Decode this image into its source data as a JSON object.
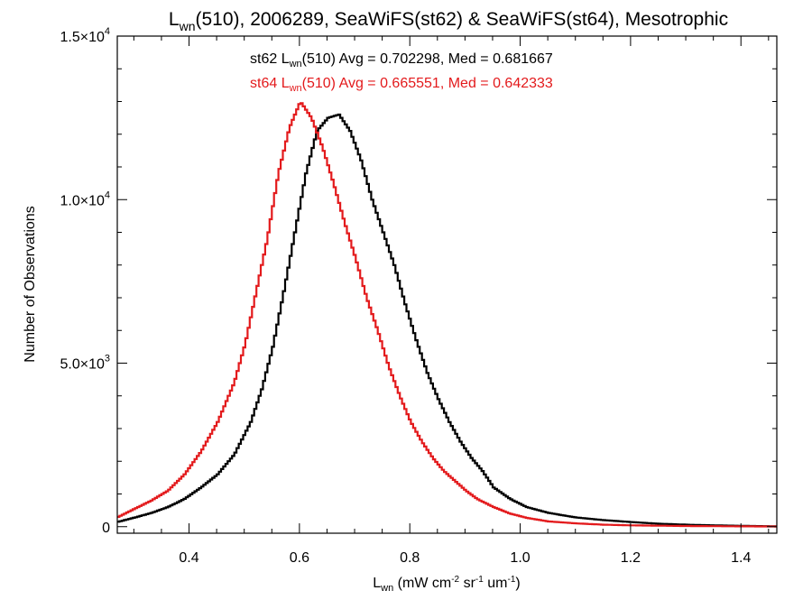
{
  "chart_data": {
    "type": "line",
    "title": {
      "main": "L",
      "sub": "wn",
      "rest": "(510), 2006289, SeaWiFS(st62) & SeaWiFS(st64), Mesotrophic"
    },
    "xlabel": {
      "main": "L",
      "sub": "wn",
      "rest": " (mW cm",
      "sup1": "-2",
      "mid1": " sr",
      "sup2": "-1",
      "mid2": " um",
      "sup3": "-1",
      "end": ")"
    },
    "ylabel": "Number of Observations",
    "xlim": [
      0.27,
      1.465
    ],
    "ylim": [
      -200,
      15000
    ],
    "x_ticks": [
      0.4,
      0.6,
      0.8,
      1.0,
      1.2,
      1.4
    ],
    "x_tick_labels": [
      "0.4",
      "0.6",
      "0.8",
      "1.0",
      "1.2",
      "1.4"
    ],
    "y_ticks": [
      {
        "value": 0,
        "base": "0",
        "exp": ""
      },
      {
        "value": 5000,
        "base": "5.0×10",
        "exp": "3"
      },
      {
        "value": 10000,
        "base": "1.0×10",
        "exp": "4"
      },
      {
        "value": 15000,
        "base": "1.5×10",
        "exp": "4"
      }
    ],
    "y_minor_step": 1000,
    "grid": false,
    "legend": "top-center",
    "series": [
      {
        "label_prefix": "st62 L",
        "label_sub": "wn",
        "label_rest": "(510) Avg = 0.702298, Med = 0.681667",
        "color": "#000000",
        "x": [
          0.27,
          0.3,
          0.33,
          0.36,
          0.39,
          0.42,
          0.45,
          0.48,
          0.51,
          0.53,
          0.55,
          0.57,
          0.59,
          0.61,
          0.63,
          0.65,
          0.67,
          0.69,
          0.71,
          0.73,
          0.75,
          0.77,
          0.79,
          0.81,
          0.83,
          0.85,
          0.87,
          0.89,
          0.91,
          0.93,
          0.95,
          0.98,
          1.01,
          1.05,
          1.1,
          1.15,
          1.2,
          1.25,
          1.3,
          1.35,
          1.4,
          1.465
        ],
        "values": [
          150,
          280,
          420,
          600,
          850,
          1200,
          1600,
          2200,
          3200,
          4200,
          5500,
          7200,
          9000,
          10800,
          12100,
          12500,
          12600,
          12100,
          11200,
          10000,
          9000,
          8000,
          6800,
          5700,
          4700,
          3900,
          3200,
          2600,
          2100,
          1700,
          1200,
          850,
          600,
          420,
          280,
          200,
          140,
          90,
          60,
          40,
          25,
          10
        ]
      },
      {
        "label_prefix": "st64 L",
        "label_sub": "wn",
        "label_rest": "(510) Avg = 0.665551, Med = 0.642333",
        "color": "#e31a1c",
        "x": [
          0.27,
          0.3,
          0.33,
          0.36,
          0.39,
          0.42,
          0.45,
          0.48,
          0.5,
          0.52,
          0.54,
          0.56,
          0.58,
          0.6,
          0.62,
          0.64,
          0.66,
          0.68,
          0.7,
          0.72,
          0.74,
          0.76,
          0.78,
          0.8,
          0.82,
          0.84,
          0.86,
          0.88,
          0.9,
          0.92,
          0.95,
          0.98,
          1.01,
          1.05,
          1.1,
          1.15,
          1.2,
          1.25,
          1.3,
          1.35,
          1.4,
          1.465
        ],
        "values": [
          300,
          550,
          800,
          1100,
          1600,
          2300,
          3200,
          4400,
          5600,
          7200,
          8800,
          10800,
          12200,
          13000,
          12500,
          11600,
          10500,
          9300,
          8200,
          7000,
          6000,
          4900,
          4000,
          3200,
          2600,
          2100,
          1700,
          1400,
          1100,
          850,
          600,
          400,
          270,
          160,
          100,
          60,
          40,
          30,
          20,
          15,
          10,
          5
        ]
      }
    ]
  }
}
